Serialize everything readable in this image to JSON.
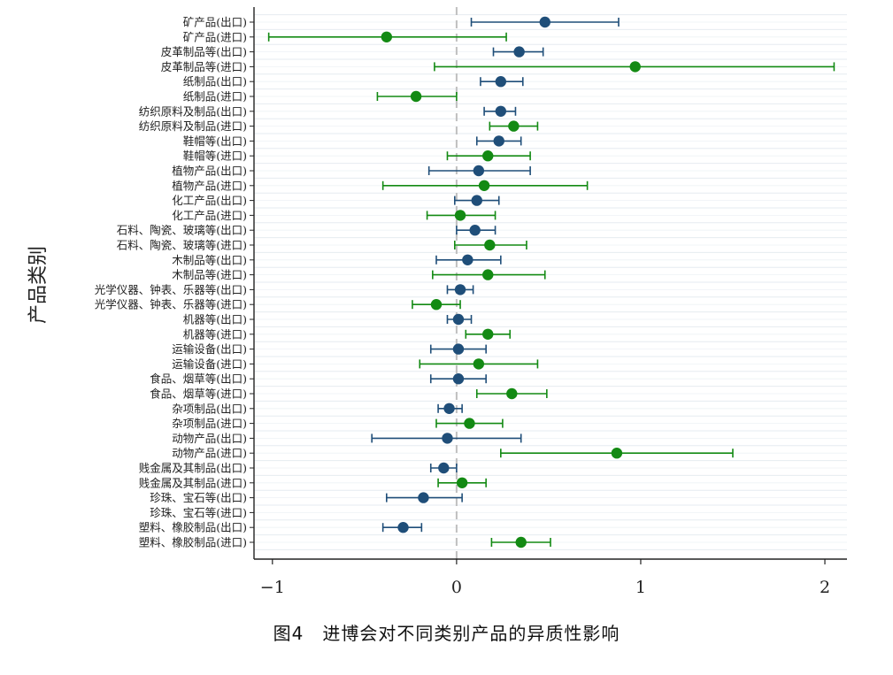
{
  "figure": {
    "caption": "图4　进博会对不同类别产品的异质性影响"
  },
  "chart_data": {
    "type": "scatter",
    "subtype": "coefficient-plot-with-confidence-intervals",
    "ylabel": "产品类别",
    "xlabel": "",
    "xlim": [
      -1.1,
      2.12
    ],
    "x_ticks": [
      -1,
      0,
      1,
      2
    ],
    "x_tick_labels": [
      "−1",
      "0",
      "1",
      "2"
    ],
    "reference_line_x": 0,
    "grid": "horizontal",
    "colors": {
      "export": "#1f4e79",
      "import": "#138a13",
      "reference": "#bfbfbf",
      "grid": "#e6ebf0",
      "axis": "#222222"
    },
    "series_types": [
      "export",
      "import"
    ],
    "categories": [
      {
        "label": "矿产品(出口)",
        "type": "export",
        "est": 0.48,
        "lo": 0.08,
        "hi": 0.88
      },
      {
        "label": "矿产品(进口)",
        "type": "import",
        "est": -0.38,
        "lo": -1.02,
        "hi": 0.27
      },
      {
        "label": "皮革制品等(出口)",
        "type": "export",
        "est": 0.34,
        "lo": 0.2,
        "hi": 0.47
      },
      {
        "label": "皮革制品等(进口)",
        "type": "import",
        "est": 0.97,
        "lo": -0.12,
        "hi": 2.05
      },
      {
        "label": "纸制品(出口)",
        "type": "export",
        "est": 0.24,
        "lo": 0.13,
        "hi": 0.36
      },
      {
        "label": "纸制品(进口)",
        "type": "import",
        "est": -0.22,
        "lo": -0.43,
        "hi": 0.0
      },
      {
        "label": "纺织原料及制品(出口)",
        "type": "export",
        "est": 0.24,
        "lo": 0.15,
        "hi": 0.32
      },
      {
        "label": "纺织原料及制品(进口)",
        "type": "import",
        "est": 0.31,
        "lo": 0.18,
        "hi": 0.44
      },
      {
        "label": "鞋帽等(出口)",
        "type": "export",
        "est": 0.23,
        "lo": 0.11,
        "hi": 0.35
      },
      {
        "label": "鞋帽等(进口)",
        "type": "import",
        "est": 0.17,
        "lo": -0.05,
        "hi": 0.4
      },
      {
        "label": "植物产品(出口)",
        "type": "export",
        "est": 0.12,
        "lo": -0.15,
        "hi": 0.4
      },
      {
        "label": "植物产品(进口)",
        "type": "import",
        "est": 0.15,
        "lo": -0.4,
        "hi": 0.71
      },
      {
        "label": "化工产品(出口)",
        "type": "export",
        "est": 0.11,
        "lo": -0.01,
        "hi": 0.23
      },
      {
        "label": "化工产品(进口)",
        "type": "import",
        "est": 0.02,
        "lo": -0.16,
        "hi": 0.21
      },
      {
        "label": "石料、陶瓷、玻璃等(出口)",
        "type": "export",
        "est": 0.1,
        "lo": 0.0,
        "hi": 0.21
      },
      {
        "label": "石料、陶瓷、玻璃等(进口)",
        "type": "import",
        "est": 0.18,
        "lo": -0.01,
        "hi": 0.38
      },
      {
        "label": "木制品等(出口)",
        "type": "export",
        "est": 0.06,
        "lo": -0.11,
        "hi": 0.24
      },
      {
        "label": "木制品等(进口)",
        "type": "import",
        "est": 0.17,
        "lo": -0.13,
        "hi": 0.48
      },
      {
        "label": "光学仪器、钟表、乐器等(出口)",
        "type": "export",
        "est": 0.02,
        "lo": -0.05,
        "hi": 0.09
      },
      {
        "label": "光学仪器、钟表、乐器等(进口)",
        "type": "import",
        "est": -0.11,
        "lo": -0.24,
        "hi": 0.02
      },
      {
        "label": "机器等(出口)",
        "type": "export",
        "est": 0.01,
        "lo": -0.05,
        "hi": 0.08
      },
      {
        "label": "机器等(进口)",
        "type": "import",
        "est": 0.17,
        "lo": 0.05,
        "hi": 0.29
      },
      {
        "label": "运输设备(出口)",
        "type": "export",
        "est": 0.01,
        "lo": -0.14,
        "hi": 0.16
      },
      {
        "label": "运输设备(进口)",
        "type": "import",
        "est": 0.12,
        "lo": -0.2,
        "hi": 0.44
      },
      {
        "label": "食品、烟草等(出口)",
        "type": "export",
        "est": 0.01,
        "lo": -0.14,
        "hi": 0.16
      },
      {
        "label": "食品、烟草等(进口)",
        "type": "import",
        "est": 0.3,
        "lo": 0.11,
        "hi": 0.49
      },
      {
        "label": "杂项制品(出口)",
        "type": "export",
        "est": -0.04,
        "lo": -0.1,
        "hi": 0.03
      },
      {
        "label": "杂项制品(进口)",
        "type": "import",
        "est": 0.07,
        "lo": -0.11,
        "hi": 0.25
      },
      {
        "label": "动物产品(出口)",
        "type": "export",
        "est": -0.05,
        "lo": -0.46,
        "hi": 0.35
      },
      {
        "label": "动物产品(进口)",
        "type": "import",
        "est": 0.87,
        "lo": 0.24,
        "hi": 1.5
      },
      {
        "label": "贱金属及其制品(出口)",
        "type": "export",
        "est": -0.07,
        "lo": -0.14,
        "hi": 0.0
      },
      {
        "label": "贱金属及其制品(进口)",
        "type": "import",
        "est": 0.03,
        "lo": -0.1,
        "hi": 0.16
      },
      {
        "label": "珍珠、宝石等(出口)",
        "type": "export",
        "est": -0.18,
        "lo": -0.38,
        "hi": 0.03
      },
      {
        "label": "珍珠、宝石等(进口)",
        "type": "import",
        "est": null,
        "lo": null,
        "hi": null
      },
      {
        "label": "塑料、橡胶制品(出口)",
        "type": "export",
        "est": -0.29,
        "lo": -0.4,
        "hi": -0.19
      },
      {
        "label": "塑料、橡胶制品(进口)",
        "type": "import",
        "est": 0.35,
        "lo": 0.19,
        "hi": 0.51
      }
    ]
  }
}
